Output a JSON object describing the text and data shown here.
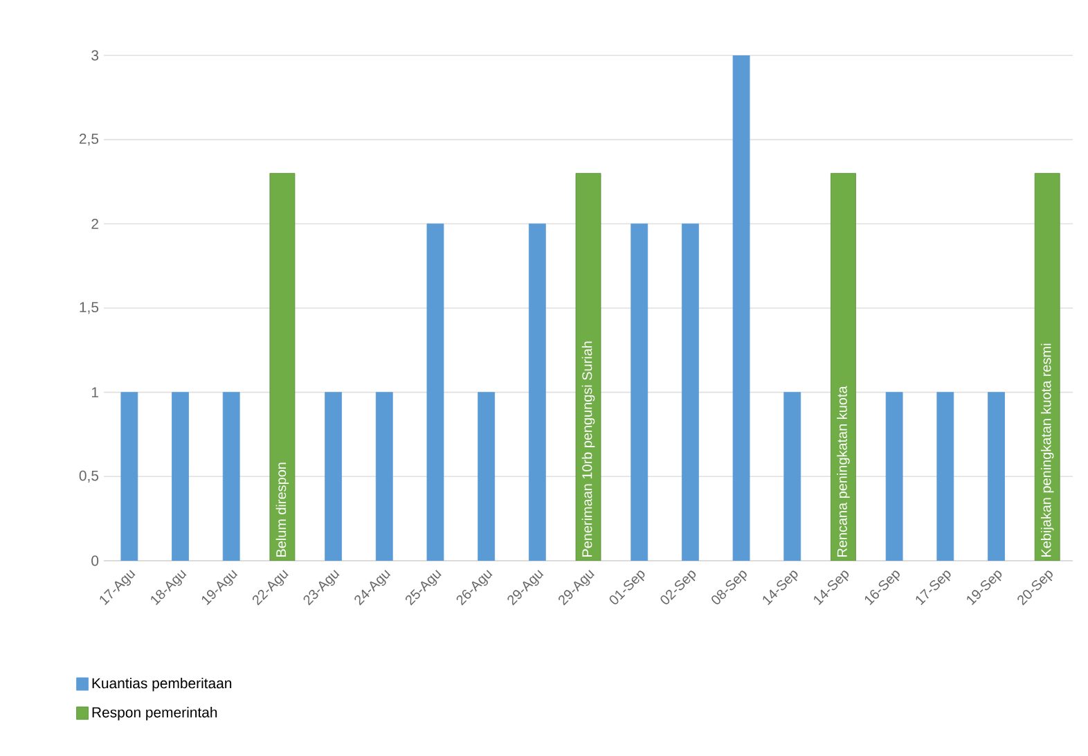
{
  "chart_data": {
    "type": "bar",
    "categories": [
      "17-Agu",
      "18-Agu",
      "19-Agu",
      "22-Agu",
      "23-Agu",
      "24-Agu",
      "25-Agu",
      "26-Agu",
      "29-Agu",
      "29-Agu",
      "01-Sep",
      "02-Sep",
      "08-Sep",
      "14-Sep",
      "14-Sep",
      "16-Sep",
      "17-Sep",
      "19-Sep",
      "20-Sep"
    ],
    "series": [
      {
        "name": "Kuantias pemberitaan",
        "color": "#5b9bd5",
        "values": [
          1,
          1,
          1,
          null,
          1,
          1,
          2,
          1,
          2,
          null,
          2,
          2,
          3,
          1,
          null,
          1,
          1,
          1,
          null
        ]
      },
      {
        "name": "Respon pemerintah",
        "color": "#70ad47",
        "values": [
          null,
          null,
          null,
          2.3,
          null,
          null,
          null,
          null,
          null,
          2.3,
          null,
          null,
          null,
          null,
          2.3,
          null,
          null,
          null,
          2.3
        ],
        "value_labels": [
          null,
          null,
          null,
          "Belum direspon",
          null,
          null,
          null,
          null,
          null,
          "Penerimaan 10rb pengungsi Suriah",
          null,
          null,
          null,
          null,
          "Rencana peningkatan kuota",
          null,
          null,
          null,
          "Kebijakan peningkatan kuota resmi"
        ]
      }
    ],
    "ylim": [
      0,
      3
    ],
    "yticks": [
      {
        "value": 0,
        "label": "0"
      },
      {
        "value": 0.5,
        "label": "0,5"
      },
      {
        "value": 1,
        "label": "1"
      },
      {
        "value": 1.5,
        "label": "1,5"
      },
      {
        "value": 2,
        "label": "2"
      },
      {
        "value": 2.5,
        "label": "2,5"
      },
      {
        "value": 3,
        "label": "3"
      }
    ],
    "grid": "y",
    "legend": "bottom left"
  }
}
